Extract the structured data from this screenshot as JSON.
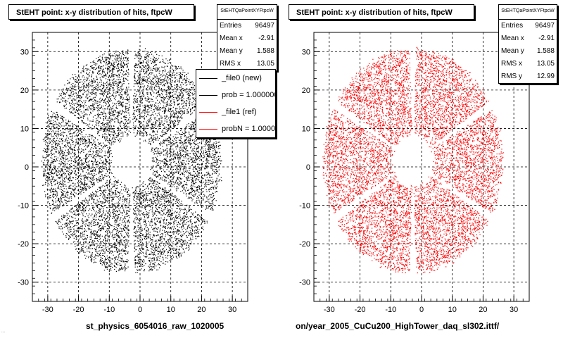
{
  "panels": [
    {
      "title": "StEHT point: x-y distribution of hits, ftpcW",
      "stats": {
        "name": "StEHTQaPointXYFtpcW",
        "rows": [
          {
            "label": "Entries",
            "value": "96497"
          },
          {
            "label": "Mean x",
            "value": "-2.91"
          },
          {
            "label": "Mean y",
            "value": "1.588"
          },
          {
            "label": "RMS x",
            "value": "13.05"
          }
        ]
      },
      "x_axis_title": "st_physics_6054016_raw_1020005",
      "color": "#000000"
    },
    {
      "title": "StEHT point: x-y distribution of hits, ftpcW",
      "stats": {
        "name": "StEHTQaPointXYFtpcW",
        "rows": [
          {
            "label": "Entries",
            "value": "96497"
          },
          {
            "label": "Mean x",
            "value": "-2.91"
          },
          {
            "label": "Mean y",
            "value": "1.588"
          },
          {
            "label": "RMS x",
            "value": "13.05"
          },
          {
            "label": "RMS y",
            "value": "12.99"
          }
        ]
      },
      "x_axis_title": "on/year_2005_CuCu200_HighTower_daq_sl302.ittf/",
      "color": "#ff0000"
    }
  ],
  "legend": {
    "entries": [
      {
        "label": "_file0 (new)",
        "color": "#000000"
      },
      {
        "label": "prob = 1.000000",
        "color": "#000000"
      },
      {
        "label": "_file1 (ref)",
        "color": "#ff0000"
      },
      {
        "label": "probN = 1.000000",
        "color": "#ff0000"
      }
    ]
  },
  "footer_note": "...",
  "chart_data": [
    {
      "type": "scatter",
      "title": "StEHT point: x-y distribution of hits, ftpcW",
      "xlabel": "st_physics_6054016_raw_1020005",
      "ylabel": "",
      "xlim": [
        -35,
        35
      ],
      "ylim": [
        -35,
        35
      ],
      "x_ticks": [
        -30,
        -20,
        -10,
        0,
        10,
        20,
        30
      ],
      "y_ticks": [
        -30,
        -20,
        -10,
        0,
        10,
        20,
        30
      ],
      "grid": true,
      "distribution": {
        "shape": "annulus",
        "center": [
          -2.91,
          1.588
        ],
        "inner_radius": 7,
        "outer_radius": 29,
        "gap_angles_deg": [
          90,
          30,
          -30,
          -90,
          -150,
          150
        ]
      },
      "entries": 96497,
      "mean_x": -2.91,
      "mean_y": 1.588,
      "rms_x": 13.05,
      "series": [
        {
          "name": "_file0 (new)",
          "color": "#000000"
        }
      ]
    },
    {
      "type": "scatter",
      "title": "StEHT point: x-y distribution of hits, ftpcW",
      "xlabel": "on/year_2005_CuCu200_HighTower_daq_sl302.ittf/",
      "ylabel": "",
      "xlim": [
        -35,
        35
      ],
      "ylim": [
        -35,
        35
      ],
      "x_ticks": [
        -30,
        -20,
        -10,
        0,
        10,
        20,
        30
      ],
      "y_ticks": [
        -30,
        -20,
        -10,
        0,
        10,
        20,
        30
      ],
      "grid": true,
      "distribution": {
        "shape": "annulus",
        "center": [
          -2.91,
          1.588
        ],
        "inner_radius": 7,
        "outer_radius": 29,
        "gap_angles_deg": [
          90,
          30,
          -30,
          -90,
          -150,
          150
        ]
      },
      "entries": 96497,
      "mean_x": -2.91,
      "mean_y": 1.588,
      "rms_x": 13.05,
      "rms_y": 12.99,
      "series": [
        {
          "name": "_file1 (ref)",
          "color": "#ff0000"
        }
      ]
    }
  ]
}
